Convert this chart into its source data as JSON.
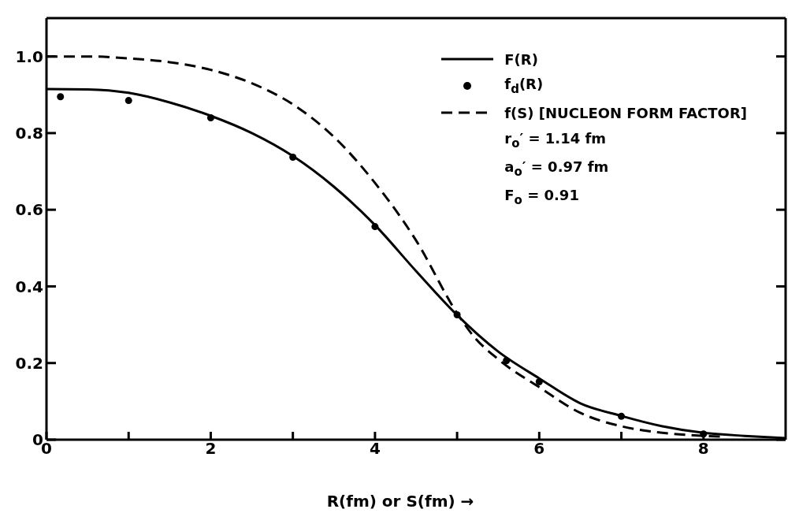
{
  "chart_data": {
    "type": "line",
    "xlabel": "R(fm) or S(fm) →",
    "xlim": [
      0,
      9
    ],
    "xticks": [
      0,
      {
        "value": 1,
        "label": null
      },
      2,
      {
        "value": 3,
        "label": null
      },
      4,
      {
        "value": 5,
        "label": null
      },
      6,
      {
        "value": 7,
        "label": null
      },
      8
    ],
    "ylim": [
      0,
      1.1
    ],
    "yticks": [
      0,
      0.2,
      0.4,
      0.6,
      0.8,
      {
        "value": 1,
        "label": "1.0"
      }
    ],
    "grid": false,
    "legend": "top right",
    "series": [
      {
        "name": "F(R)",
        "color": "#000000",
        "line_style": "solid",
        "marker": "none",
        "x": [
          0,
          0.5,
          1,
          1.5,
          2,
          2.5,
          3,
          3.5,
          4,
          4.5,
          5,
          5.5,
          6,
          6.5,
          7,
          7.5,
          8,
          8.5,
          9
        ],
        "values": [
          0.915,
          0.914,
          0.905,
          0.88,
          0.845,
          0.8,
          0.74,
          0.66,
          0.56,
          0.44,
          0.325,
          0.23,
          0.16,
          0.095,
          0.062,
          0.035,
          0.018,
          0.01,
          0.004
        ]
      },
      {
        "name": "f$_{d}$(R)",
        "type": "scatter",
        "color": "#000000",
        "marker": "circle",
        "x": [
          0.17,
          1,
          2,
          3,
          4,
          5,
          5.6,
          6,
          7,
          8
        ],
        "values": [
          0.895,
          0.885,
          0.84,
          0.737,
          0.556,
          0.326,
          0.206,
          0.151,
          0.061,
          0.015
        ]
      },
      {
        "name": "f(S) [NUCLEON FORM FACTOR]",
        "color": "#000000",
        "line_style": "dashed",
        "marker": "none",
        "x": [
          0,
          0.5,
          1,
          1.5,
          2,
          2.5,
          3,
          3.5,
          4,
          4.5,
          5,
          5.2,
          5.5,
          6,
          6.5,
          7,
          7.5,
          8,
          8.2
        ],
        "values": [
          1.0,
          1.0,
          0.995,
          0.985,
          0.965,
          0.93,
          0.875,
          0.79,
          0.67,
          0.52,
          0.33,
          0.27,
          0.21,
          0.137,
          0.07,
          0.035,
          0.018,
          0.01,
          0.008
        ]
      }
    ],
    "annotations": [
      "r$_{o}$′ = 1.14 fm",
      "a$_{o}$′ = 0.97 fm",
      "F$_{o}$ = 0.91"
    ]
  }
}
